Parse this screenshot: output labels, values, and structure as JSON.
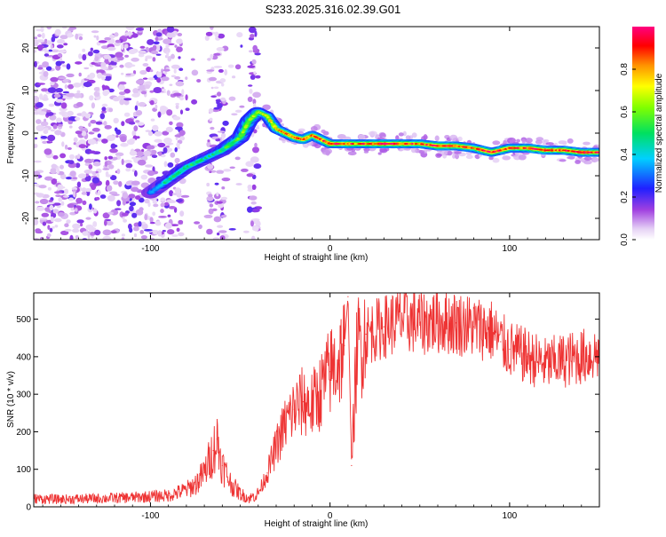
{
  "figure_title": "S233.2025.316.02.39.G01",
  "chart_data": [
    {
      "type": "heatmap",
      "title": "S233.2025.316.02.39.G01",
      "xlabel": "Height of straight line (km)",
      "ylabel": "Frequency (Hz)",
      "xlim": [
        -165,
        150
      ],
      "ylim": [
        -25,
        25
      ],
      "xticks": [
        -100,
        0,
        100
      ],
      "yticks": [
        -20,
        -10,
        0,
        10,
        20
      ],
      "colorbar": {
        "label": "Normalized spectral amplitude",
        "range": [
          0,
          1
        ],
        "ticks": [
          "0.0",
          "0.2",
          "0.4",
          "0.6",
          "0.8"
        ],
        "colormap": "rainbow (white-purple-blue-cyan-green-yellow-red-magenta)"
      },
      "ridge": {
        "x": [
          -100,
          -90,
          -80,
          -70,
          -60,
          -50,
          -45,
          -40,
          -35,
          -30,
          -25,
          -20,
          -15,
          -10,
          -5,
          0,
          10,
          20,
          30,
          40,
          50,
          60,
          70,
          80,
          90,
          100,
          110,
          120,
          130,
          140,
          150
        ],
        "freq": [
          -14,
          -11,
          -8,
          -6,
          -4,
          -1,
          3,
          5,
          4,
          1,
          0,
          -1,
          -1.5,
          -0.5,
          -1.5,
          -2.5,
          -2.5,
          -2.5,
          -2.5,
          -2.5,
          -2.5,
          -3,
          -3,
          -3.5,
          -4.5,
          -3.5,
          -3.5,
          -4,
          -4,
          -4.5,
          -4.5
        ],
        "amplitude": [
          0.35,
          0.45,
          0.5,
          0.45,
          0.5,
          0.6,
          0.6,
          0.65,
          0.7,
          0.75,
          0.8,
          0.85,
          0.9,
          0.8,
          0.85,
          0.9,
          0.9,
          0.85,
          0.95,
          0.9,
          0.85,
          0.95,
          0.9,
          0.85,
          0.95,
          0.85,
          0.9,
          0.95,
          0.9,
          0.95,
          0.9
        ]
      },
      "noise_region_x": [
        -165,
        -40
      ]
    },
    {
      "type": "line",
      "xlabel": "Height of straight line (km)",
      "ylabel": "SNR (10 * v/v)",
      "xlim": [
        -165,
        150
      ],
      "ylim": [
        0,
        570
      ],
      "xticks": [
        -100,
        0,
        100
      ],
      "yticks": [
        0,
        100,
        200,
        300,
        400,
        500
      ],
      "color": "#ee3333",
      "series": [
        {
          "name": "SNR",
          "x": [
            -165,
            -150,
            -130,
            -110,
            -90,
            -80,
            -75,
            -70,
            -65,
            -63,
            -60,
            -55,
            -50,
            -45,
            -40,
            -35,
            -30,
            -25,
            -20,
            -15,
            -10,
            -5,
            0,
            5,
            8,
            10,
            12,
            15,
            20,
            30,
            40,
            50,
            60,
            70,
            80,
            90,
            95,
            100,
            110,
            120,
            130,
            140,
            150
          ],
          "y": [
            22,
            20,
            22,
            25,
            30,
            45,
            60,
            90,
            150,
            180,
            110,
            60,
            35,
            22,
            35,
            90,
            160,
            220,
            260,
            280,
            270,
            310,
            360,
            390,
            430,
            560,
            110,
            420,
            460,
            480,
            500,
            490,
            495,
            490,
            480,
            470,
            440,
            420,
            400,
            380,
            390,
            400,
            410
          ]
        }
      ]
    }
  ]
}
